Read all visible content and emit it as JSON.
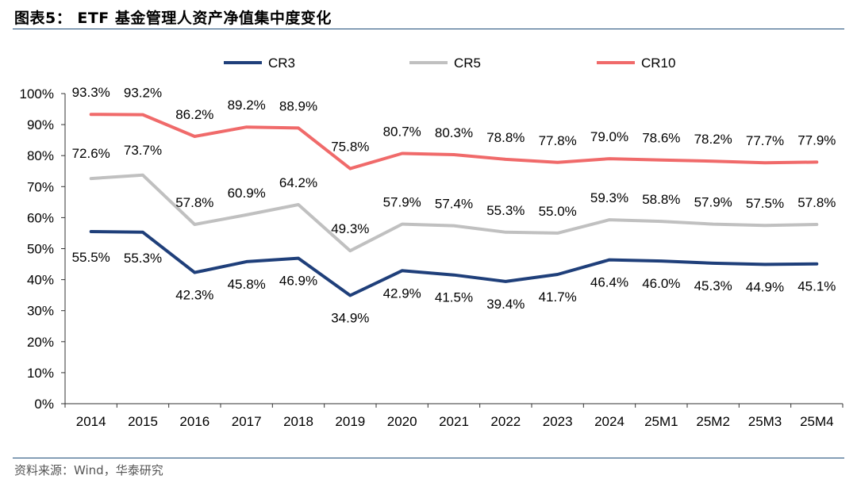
{
  "header": {
    "title": "图表5：  ETF 基金管理人资产净值集中度变化"
  },
  "footer": {
    "source": "资料来源：Wind，华泰研究"
  },
  "chart_data": {
    "type": "line",
    "categories": [
      "2014",
      "2015",
      "2016",
      "2017",
      "2018",
      "2019",
      "2020",
      "2021",
      "2022",
      "2023",
      "2024",
      "25M1",
      "25M2",
      "25M3",
      "25M4"
    ],
    "ylim": [
      0,
      100
    ],
    "yticks": [
      "0%",
      "10%",
      "20%",
      "30%",
      "40%",
      "50%",
      "60%",
      "70%",
      "80%",
      "90%",
      "100%"
    ],
    "legend_position": "top-center",
    "grid": false,
    "series": [
      {
        "name": "CR3",
        "color": "#1f3f7a",
        "values": [
          55.5,
          55.3,
          42.3,
          45.8,
          46.9,
          34.9,
          42.9,
          41.5,
          39.4,
          41.7,
          46.4,
          46.0,
          45.3,
          44.9,
          45.1
        ],
        "labels": [
          "55.5%",
          "55.3%",
          "42.3%",
          "45.8%",
          "46.9%",
          "34.9%",
          "42.9%",
          "41.5%",
          "39.4%",
          "41.7%",
          "46.4%",
          "46.0%",
          "45.3%",
          "44.9%",
          "45.1%"
        ]
      },
      {
        "name": "CR5",
        "color": "#c0c0c0",
        "values": [
          72.6,
          73.7,
          57.8,
          60.9,
          64.2,
          49.3,
          57.9,
          57.4,
          55.3,
          55.0,
          59.3,
          58.8,
          57.9,
          57.5,
          57.8
        ],
        "labels": [
          "72.6%",
          "73.7%",
          "57.8%",
          "60.9%",
          "64.2%",
          "49.3%",
          "57.9%",
          "57.4%",
          "55.3%",
          "55.0%",
          "59.3%",
          "58.8%",
          "57.9%",
          "57.5%",
          "57.8%"
        ]
      },
      {
        "name": "CR10",
        "color": "#f06a6a",
        "values": [
          93.3,
          93.2,
          86.2,
          89.2,
          88.9,
          75.8,
          80.7,
          80.3,
          78.8,
          77.8,
          79.0,
          78.6,
          78.2,
          77.7,
          77.9
        ],
        "labels": [
          "93.3%",
          "93.2%",
          "86.2%",
          "89.2%",
          "88.9%",
          "75.8%",
          "80.7%",
          "80.3%",
          "78.8%",
          "77.8%",
          "79.0%",
          "78.6%",
          "78.2%",
          "77.7%",
          "77.9%"
        ]
      }
    ]
  }
}
